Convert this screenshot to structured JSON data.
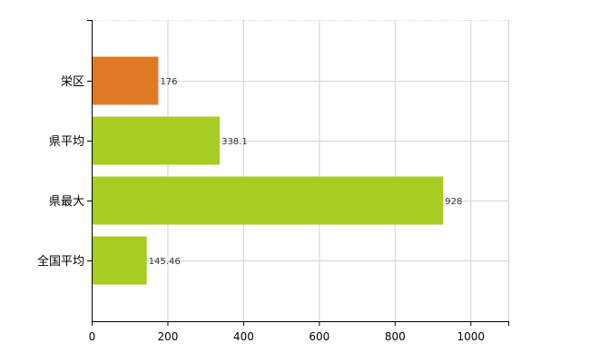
{
  "chart_data": {
    "type": "bar",
    "orientation": "horizontal",
    "title": "",
    "xlabel": "",
    "ylabel": "",
    "categories": [
      "栄区",
      "県平均",
      "県最大",
      "全国平均"
    ],
    "values": [
      176,
      338.1,
      928,
      145.46
    ],
    "value_labels": [
      "176",
      "338.1",
      "928",
      "145.46"
    ],
    "xlim": [
      0,
      1100
    ],
    "xticks": [
      0,
      200,
      400,
      600,
      800,
      1000
    ],
    "xtick_labels": [
      "0",
      "200",
      "400",
      "600",
      "800",
      "1000"
    ],
    "grid": "vertical",
    "legend": "none",
    "colors": [
      "#e07b25",
      "#a7cc22",
      "#a7cc22",
      "#a7cc22"
    ]
  }
}
